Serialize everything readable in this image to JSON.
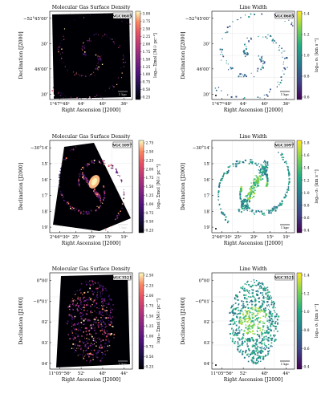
{
  "panels": [
    {
      "id": "ngc0685-density",
      "title": "Molecular Gas Surface Density",
      "galaxy": "NGC0685",
      "kind": "density",
      "ytick_labels": [
        "−52°45′00″",
        "30″",
        "46′00″",
        "30″"
      ],
      "xtick_labels": [
        "1ʰ47ᵐ48ˢ",
        "44ˢ",
        "40ˢ",
        "36ˢ"
      ],
      "ylabel": "Declination [J2000]",
      "xlabel": "Right Ascension [J2000]",
      "cbar_ticks": [
        "0.25",
        "0.50",
        "0.75",
        "1.00",
        "1.25",
        "1.50",
        "1.75",
        "2.00",
        "2.25",
        "2.50",
        "2.75",
        "3.00"
      ],
      "cbar_label": "log₁₀ Σmol [M☉ pc⁻²]",
      "scalebar": "1 kpc"
    },
    {
      "id": "ngc0685-width",
      "title": "Line Width",
      "galaxy": "NGC0685",
      "kind": "width",
      "ytick_labels": [
        "−52°45′00″",
        "30″",
        "46′00″",
        "30″"
      ],
      "xtick_labels": [
        "1ʰ47ᵐ48ˢ",
        "44ˢ",
        "40ˢ",
        "36ˢ"
      ],
      "ylabel": "Declination [J2000]",
      "xlabel": "Right Ascension [J2000]",
      "cbar_ticks": [
        "0.6",
        "0.8",
        "1.0",
        "1.2",
        "1.4"
      ],
      "cbar_label": "log₁₀ σᵥ [km s⁻¹]",
      "scalebar": "1 kpc"
    },
    {
      "id": "ngc1097-density",
      "title": "Molecular Gas Surface Density",
      "galaxy": "NGC1097",
      "kind": "density",
      "ytick_labels": [
        "−30°14′",
        "15′",
        "16′",
        "17′",
        "18′",
        "19′"
      ],
      "xtick_labels": [
        "2ʰ46ᵐ30ˢ",
        "25ˢ",
        "20ˢ",
        "15ˢ",
        "10ˢ"
      ],
      "ylabel": "Declination [J2000]",
      "xlabel": "Right Ascension [J2000]",
      "cbar_ticks": [
        "0.25",
        "0.50",
        "0.75",
        "1.00",
        "1.25",
        "1.50",
        "1.75",
        "2.00",
        "2.25",
        "2.50",
        "2.75"
      ],
      "cbar_label": "log₁₀ Σmol [M☉ pc⁻²]",
      "scalebar": "1 kpc"
    },
    {
      "id": "ngc1097-width",
      "title": "Line Width",
      "galaxy": "NGC1097",
      "kind": "width",
      "ytick_labels": [
        "−30°14′",
        "15′",
        "16′",
        "17′",
        "18′",
        "19′"
      ],
      "xtick_labels": [
        "2ʰ46ᵐ30ˢ",
        "25ˢ",
        "20ˢ",
        "15ˢ",
        "10ˢ"
      ],
      "ylabel": "Declination [J2000]",
      "xlabel": "Right Ascension [J2000]",
      "cbar_ticks": [
        "0.4",
        "0.6",
        "0.8",
        "1.0",
        "1.2",
        "1.4",
        "1.6",
        "1.8"
      ],
      "cbar_label": "log₁₀ σᵥ [km s⁻¹]",
      "scalebar": "1 kpc"
    },
    {
      "id": "ngc3521-density",
      "title": "Molecular Gas Surface Density",
      "galaxy": "NGC3521",
      "kind": "density",
      "ytick_labels": [
        "0°00′",
        "−0°01′",
        "02′",
        "03′",
        "04′"
      ],
      "xtick_labels": [
        "11ʰ05ᵐ56ˢ",
        "52ˢ",
        "48ˢ",
        "44ˢ"
      ],
      "ylabel": "Declination [J2000]",
      "xlabel": "Right Ascension [J2000]",
      "cbar_ticks": [
        "0.25",
        "0.50",
        "0.75",
        "1.00",
        "1.25",
        "1.50",
        "1.75",
        "2.00",
        "2.25",
        "2.50"
      ],
      "cbar_label": "log₁₀ Σmol [M☉ pc⁻²]",
      "scalebar": "1 kpc"
    },
    {
      "id": "ngc3521-width",
      "title": "Line Width",
      "galaxy": "NGC3521",
      "kind": "width",
      "ytick_labels": [
        "0°00′",
        "−0°01′",
        "02′",
        "03′",
        "04′"
      ],
      "xtick_labels": [
        "11ʰ05ᵐ56ˢ",
        "52ˢ",
        "48ˢ",
        "44ˢ"
      ],
      "ylabel": "Declination [J2000]",
      "xlabel": "Right Ascension [J2000]",
      "cbar_ticks": [
        "0.4",
        "0.6",
        "0.8",
        "1.0",
        "1.2",
        "1.4"
      ],
      "cbar_label": "log₁₀ σᵥ [km s⁻¹]",
      "scalebar": "1 kpc"
    }
  ]
}
